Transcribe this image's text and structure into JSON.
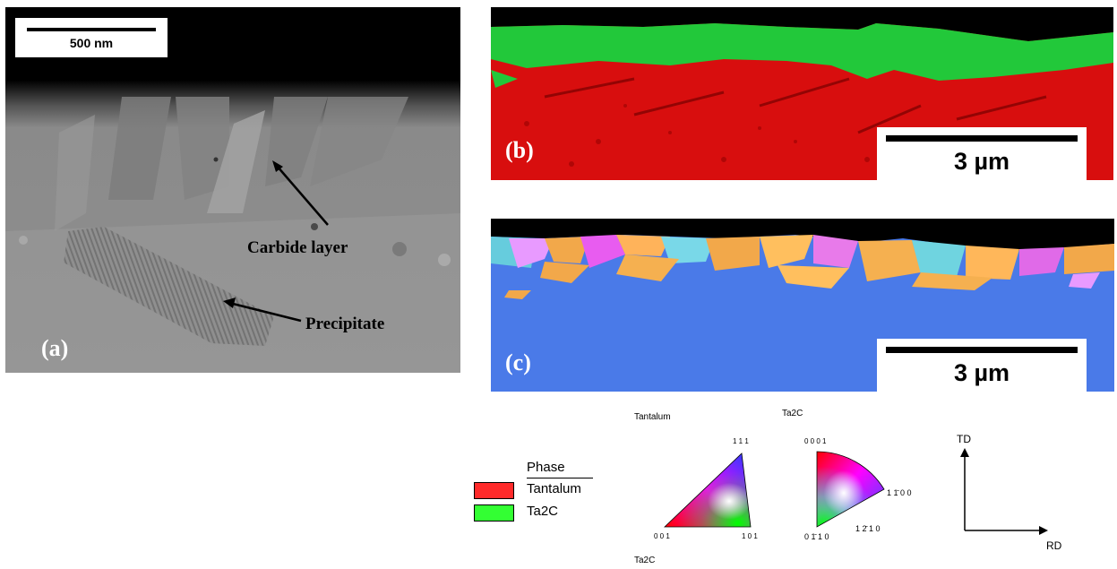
{
  "panel_a": {
    "label": "(a)",
    "scale_bar": "500 nm",
    "annotations": {
      "carbide": "Carbide layer",
      "precipitate": "Precipitate"
    }
  },
  "panel_b": {
    "label": "(b)",
    "scale_bar": "3 µm"
  },
  "panel_c": {
    "label": "(c)",
    "scale_bar": "3 µm"
  },
  "legend": {
    "title": "Phase",
    "phases": [
      {
        "name": "Tantalum",
        "color": "#ff2a2a"
      },
      {
        "name": "Ta2C",
        "color": "#33ff33"
      }
    ]
  },
  "ipf_keys": {
    "tantalum": {
      "title": "Tantalum",
      "labels": [
        "1 1 1",
        "0 0 1",
        "1 0 1"
      ]
    },
    "ta2c": {
      "title": "Ta2C",
      "labels": [
        "0 0 0 1",
        "1 1̄ 0 0",
        "1 2̄ 1 0",
        "0 1̄ 1 0"
      ],
      "footer": "Ta2C"
    }
  },
  "axes": {
    "td": "TD",
    "rd": "RD"
  },
  "colors": {
    "tantalum_ipf_blue": "#4a7ae8",
    "carbide_green": "#22c83a",
    "matrix_red": "#e01010"
  }
}
